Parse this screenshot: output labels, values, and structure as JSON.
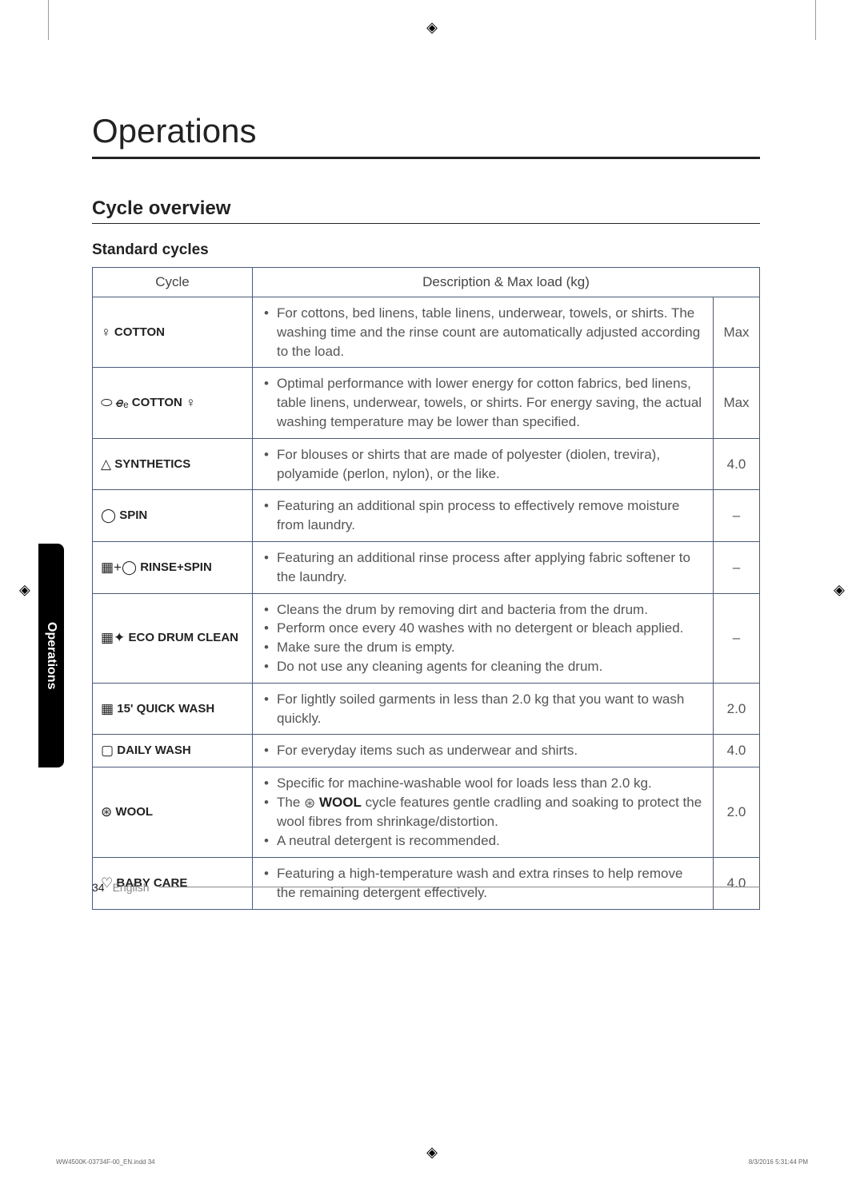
{
  "crop_mark": "◈",
  "title": "Operations",
  "side_tab": "Operations",
  "subtitle": "Cycle overview",
  "subheading": "Standard cycles",
  "table": {
    "headers": {
      "cycle": "Cycle",
      "desc": "Description & Max load (kg)"
    },
    "rows": [
      {
        "icon": "♀",
        "cycle": "COTTON",
        "bullets": [
          "For cottons, bed linens, table linens, underwear, towels, or shirts. The washing time and the rinse count are automatically adjusted according to the load."
        ],
        "load": "Max"
      },
      {
        "icon": "⬭ 𝑒̶ₑ",
        "cycle_suffix_icon": "♀",
        "cycle": "COTTON",
        "bullets": [
          "Optimal performance with lower energy for cotton fabrics, bed linens, table linens, underwear, towels, or shirts. For energy saving, the actual washing temperature may be lower than specified."
        ],
        "load": "Max"
      },
      {
        "icon": "△",
        "cycle": "SYNTHETICS",
        "bullets": [
          "For blouses or shirts that are made of polyester (diolen, trevira), polyamide (perlon, nylon), or the like."
        ],
        "load": "4.0"
      },
      {
        "icon": "◯",
        "cycle": "SPIN",
        "bullets": [
          "Featuring an additional spin process to effectively remove moisture from laundry."
        ],
        "load": "–"
      },
      {
        "icon": "▦+◯",
        "cycle": "RINSE+SPIN",
        "bullets": [
          "Featuring an additional rinse process after applying fabric softener to the laundry."
        ],
        "load": "–"
      },
      {
        "icon": "▦✦",
        "cycle": "ECO DRUM CLEAN",
        "bullets": [
          "Cleans the drum by removing dirt and bacteria from the drum.",
          "Perform once every 40 washes with no detergent or bleach applied.",
          "Make sure the drum is empty.",
          "Do not use any cleaning agents for cleaning the drum."
        ],
        "load": "–"
      },
      {
        "icon": "▦",
        "cycle": "15' QUICK WASH",
        "bullets": [
          "For lightly soiled garments in less than 2.0 kg that you want to wash quickly."
        ],
        "load": "2.0"
      },
      {
        "icon": "▢",
        "cycle": "DAILY WASH",
        "bullets": [
          "For everyday items such as underwear and shirts."
        ],
        "load": "4.0"
      },
      {
        "icon": "⊛",
        "cycle": "WOOL",
        "bullets_html": [
          "Specific for machine-washable wool for loads less than 2.0 kg.",
          "The <span class=\"icon\">⊛</span> <span class=\"wool-bold\">WOOL</span> cycle features gentle cradling and soaking to protect the wool fibres from shrinkage/distortion.",
          "A neutral detergent is recommended."
        ],
        "load": "2.0"
      },
      {
        "icon": "♡",
        "cycle": "BABY CARE",
        "bullets": [
          "Featuring a high-temperature wash and extra rinses to help remove the remaining detergent effectively."
        ],
        "load": "4.0"
      }
    ]
  },
  "footer": {
    "pagenum": "34",
    "lang": "English"
  },
  "print_footer": {
    "left": "WW4500K-03734F-00_EN.indd   34",
    "right": "8/3/2016   5:31:44 PM"
  }
}
